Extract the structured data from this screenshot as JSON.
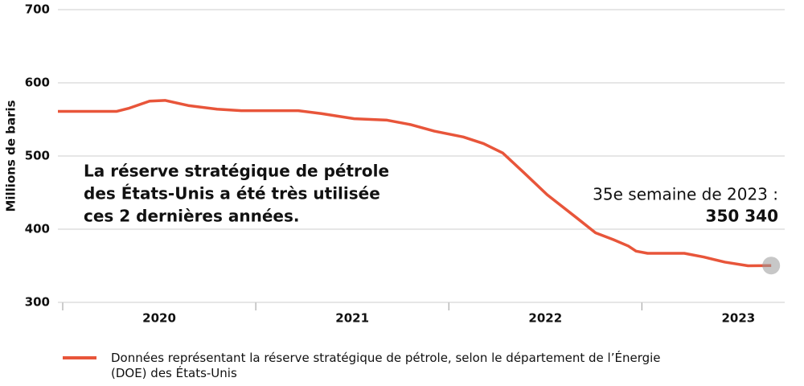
{
  "chart_data": {
    "type": "line",
    "y_label": "Millions de baris",
    "annotation": [
      "La réserve stratégique de pétrole",
      "des États-Unis a été très utilisée",
      "ces 2 dernières années."
    ],
    "highlight": {
      "label": "35e semaine de 2023 :",
      "value_label": "350 340"
    },
    "xlim": [
      2019.975,
      2023.74
    ],
    "xticks": [
      2020,
      2021,
      2022,
      2023
    ],
    "ylim": [
      300,
      700
    ],
    "yticks": [
      300,
      400,
      500,
      600,
      700
    ],
    "grid": true,
    "series": [
      {
        "name": "Données représentant la réserve stratégique de pétrole, selon le département de l’Énergie (DOE) des États-Unis",
        "color": "#e8553a",
        "x": [
          2019.975,
          2020.28,
          2020.34,
          2020.45,
          2020.53,
          2020.65,
          2020.8,
          2020.925,
          2021.22,
          2021.34,
          2021.51,
          2021.68,
          2021.8,
          2021.925,
          2022.075,
          2022.18,
          2022.28,
          2022.39,
          2022.51,
          2022.66,
          2022.76,
          2022.85,
          2022.93,
          2022.97,
          2023.03,
          2023.22,
          2023.32,
          2023.43,
          2023.55,
          2023.67
        ],
        "values": [
          561,
          561,
          565,
          575,
          576,
          569,
          564,
          562,
          562,
          558,
          551,
          549,
          543,
          534,
          526,
          517,
          504,
          477,
          447,
          416,
          395,
          386,
          377,
          370,
          367,
          367,
          362,
          355,
          350,
          350.34
        ]
      }
    ]
  }
}
